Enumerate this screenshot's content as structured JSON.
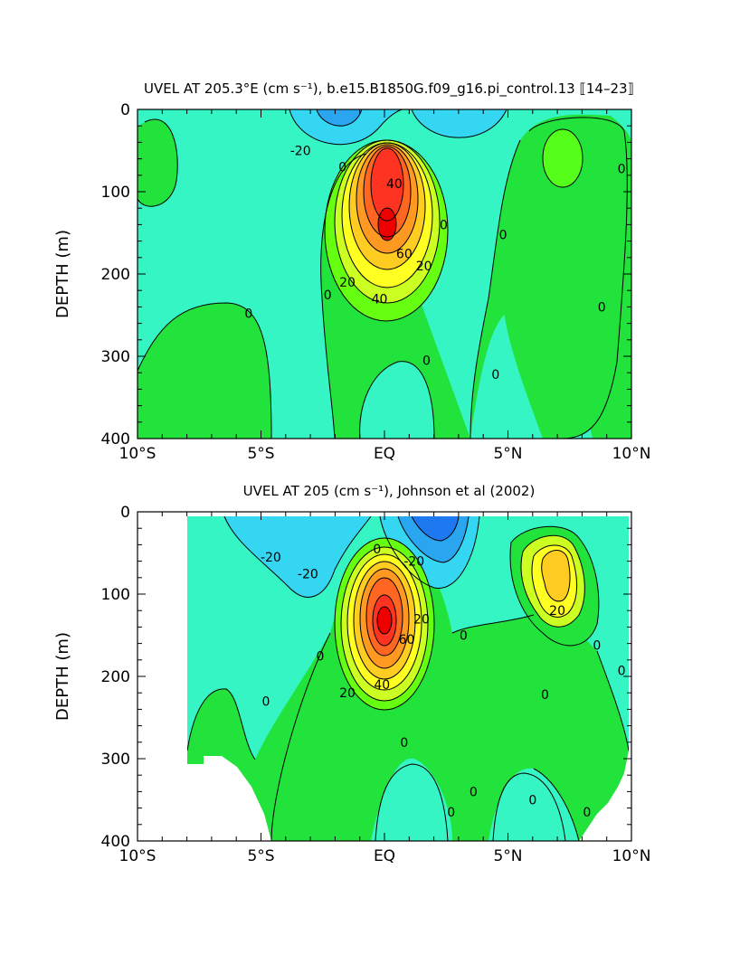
{
  "chart_data": [
    {
      "type": "contour",
      "title": "UVEL AT 205.3°E (cm s⁻¹), b.e15.B1850G.f09_g16.pi_control.13 ⟦14–23⟧",
      "xlabel": "",
      "ylabel": "DEPTH (m)",
      "xlim": [
        -10,
        10
      ],
      "ylim": [
        0,
        400
      ],
      "y_inverted": true,
      "x_ticks": [
        -10,
        -5,
        0,
        5,
        10
      ],
      "x_tick_labels": [
        "10°S",
        "5°S",
        "EQ",
        "5°N",
        "10°N"
      ],
      "y_ticks": [
        0,
        100,
        200,
        300,
        400
      ],
      "y_tick_labels": [
        "0",
        "100",
        "200",
        "300",
        "400"
      ],
      "contour_interval": 10,
      "features": [
        {
          "kind": "eastward_jet_core",
          "x": 0.0,
          "depth": 140,
          "value": 80
        },
        {
          "kind": "westward_surface_current",
          "x": -2.0,
          "depth": 0,
          "value": -30
        },
        {
          "kind": "westward_surface_current",
          "x": 2.0,
          "depth": 0,
          "value": -20
        },
        {
          "kind": "eastward_countercurrent",
          "x": 7.2,
          "depth": 60,
          "value": 10
        }
      ],
      "contour_labels": [
        {
          "text": "-20",
          "x": -3.4,
          "depth": 50
        },
        {
          "text": "0",
          "x": -1.7,
          "depth": 70
        },
        {
          "text": "40",
          "x": 0.4,
          "depth": 90
        },
        {
          "text": "0",
          "x": 2.4,
          "depth": 140
        },
        {
          "text": "60",
          "x": 0.8,
          "depth": 175
        },
        {
          "text": "20",
          "x": 1.6,
          "depth": 190
        },
        {
          "text": "20",
          "x": -1.5,
          "depth": 210
        },
        {
          "text": "40",
          "x": -0.2,
          "depth": 230
        },
        {
          "text": "0",
          "x": -2.3,
          "depth": 225
        },
        {
          "text": "0",
          "x": -5.5,
          "depth": 248
        },
        {
          "text": "0",
          "x": 1.7,
          "depth": 305
        },
        {
          "text": "0",
          "x": 4.5,
          "depth": 322
        },
        {
          "text": "0",
          "x": 4.8,
          "depth": 152
        },
        {
          "text": "0",
          "x": 9.6,
          "depth": 72
        },
        {
          "text": "0",
          "x": 8.8,
          "depth": 240
        }
      ]
    },
    {
      "type": "contour",
      "title": "UVEL AT 205 (cm s⁻¹), Johnson et al (2002)",
      "xlabel": "",
      "ylabel": "DEPTH (m)",
      "xlim": [
        -10,
        10
      ],
      "ylim": [
        0,
        400
      ],
      "y_inverted": true,
      "x_ticks": [
        -10,
        -5,
        0,
        5,
        10
      ],
      "x_tick_labels": [
        "10°S",
        "5°S",
        "EQ",
        "5°N",
        "10°N"
      ],
      "y_ticks": [
        0,
        100,
        200,
        300,
        400
      ],
      "y_tick_labels": [
        "0",
        "100",
        "200",
        "300",
        "400"
      ],
      "contour_interval": 10,
      "data_x_range": [
        -8,
        9.8
      ],
      "features": [
        {
          "kind": "eastward_jet_core",
          "x": -0.1,
          "depth": 130,
          "value": 80
        },
        {
          "kind": "westward_surface_current",
          "x": 2.0,
          "depth": 10,
          "value": -50
        },
        {
          "kind": "westward_surface_current",
          "x": -4.5,
          "depth": 50,
          "value": -20
        },
        {
          "kind": "eastward_countercurrent",
          "x": 6.9,
          "depth": 60,
          "value": 30
        }
      ],
      "contour_labels": [
        {
          "text": "-20",
          "x": -4.6,
          "depth": 55
        },
        {
          "text": "-20",
          "x": -3.1,
          "depth": 75
        },
        {
          "text": "0",
          "x": -0.3,
          "depth": 45
        },
        {
          "text": "-20",
          "x": 1.2,
          "depth": 60
        },
        {
          "text": "20",
          "x": 1.5,
          "depth": 130
        },
        {
          "text": "60",
          "x": 0.9,
          "depth": 155
        },
        {
          "text": "0",
          "x": 3.2,
          "depth": 150
        },
        {
          "text": "20",
          "x": 7.0,
          "depth": 120
        },
        {
          "text": "0",
          "x": 8.6,
          "depth": 162
        },
        {
          "text": "0",
          "x": 9.6,
          "depth": 193
        },
        {
          "text": "0",
          "x": -2.6,
          "depth": 175
        },
        {
          "text": "20",
          "x": -1.5,
          "depth": 220
        },
        {
          "text": "40",
          "x": -0.1,
          "depth": 210
        },
        {
          "text": "0",
          "x": -4.8,
          "depth": 230
        },
        {
          "text": "0",
          "x": 6.5,
          "depth": 222
        },
        {
          "text": "0",
          "x": 0.8,
          "depth": 280
        },
        {
          "text": "0",
          "x": 3.6,
          "depth": 340
        },
        {
          "text": "0",
          "x": 2.7,
          "depth": 365
        },
        {
          "text": "0",
          "x": 6.0,
          "depth": 350
        },
        {
          "text": "0",
          "x": 8.2,
          "depth": 365
        }
      ]
    }
  ]
}
